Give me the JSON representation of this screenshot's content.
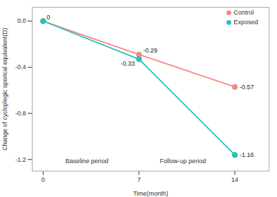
{
  "chart_data": {
    "type": "line",
    "x": [
      0,
      7,
      14
    ],
    "series": [
      {
        "name": "Control",
        "color": "#F28B82",
        "values": [
          0,
          -0.29,
          -0.57
        ]
      },
      {
        "name": "Exposed",
        "color": "#2BBFBF",
        "values": [
          0,
          -0.33,
          -1.16
        ]
      }
    ],
    "xlabel": "Time(month)",
    "ylabel": "Change of cycloplegic sperical equivalent(D)",
    "xlim": [
      -0.8,
      16.5
    ],
    "ylim": [
      -1.3,
      0.12
    ],
    "xticks": [
      0,
      7,
      14
    ],
    "yticks": [
      {
        "value": 0.0,
        "label": "0.0"
      },
      -0.4,
      -0.8,
      -1.2
    ],
    "annotations": [
      {
        "text": "0",
        "x": 0,
        "y": 0
      },
      {
        "text": "-0.29",
        "x": 7,
        "y": -0.29
      },
      {
        "text": "-0.33",
        "x": 7,
        "y": -0.33
      },
      {
        "text": "-0.57",
        "x": 14,
        "y": -0.57
      },
      {
        "text": "-1.16",
        "x": 14,
        "y": -1.16
      },
      {
        "text": "Baseline period",
        "x": 3.2,
        "y": -1.19
      },
      {
        "text": "Follow-up period",
        "x": 10.2,
        "y": -1.19
      }
    ],
    "marker": "circle",
    "legend": "upper right",
    "grid": false
  }
}
